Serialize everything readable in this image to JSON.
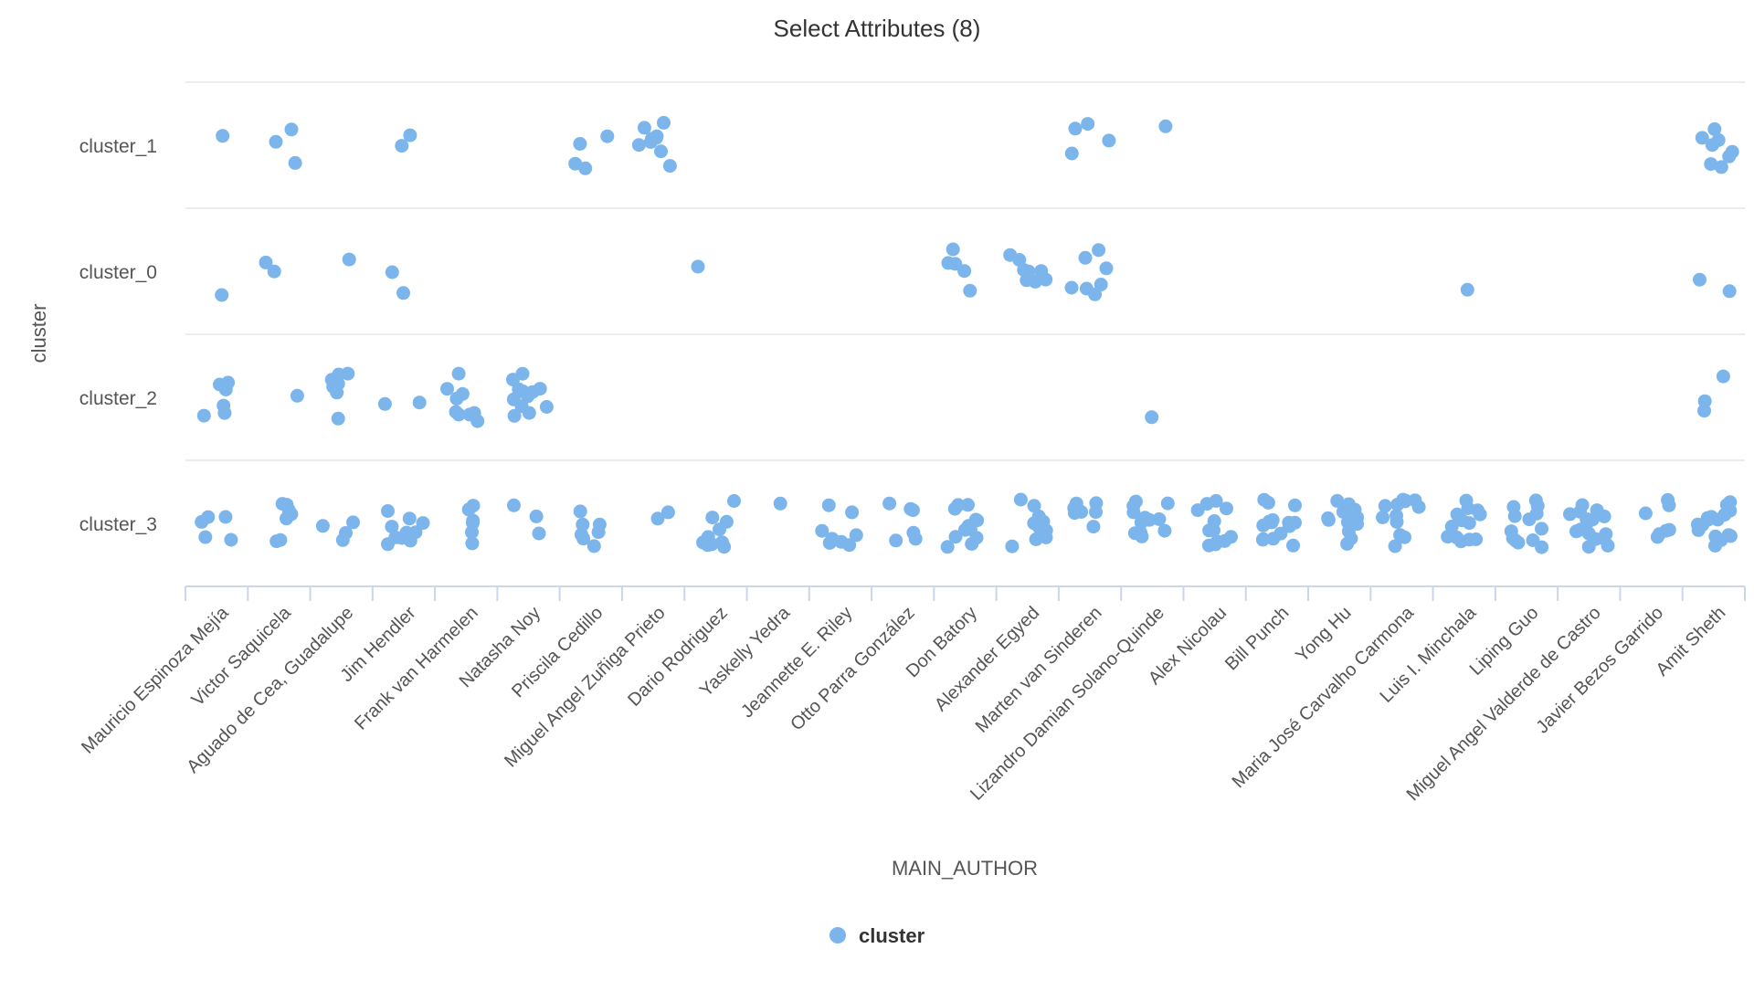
{
  "chart_data": {
    "type": "scatter",
    "title": "Select Attributes (8)",
    "xlabel": "MAIN_AUTHOR",
    "ylabel": "cluster",
    "categories": [
      "Mauricio Espinoza Mejía",
      "Victor Saquicela",
      "Aguado de Cea, Guadalupe",
      "Jim Hendler",
      "Frank van Harmelen",
      "Natasha Noy",
      "Priscila Cedillo",
      "Miguel Angel Zuñiga Prieto",
      "Dario Rodriguez",
      "Yaskelly Yedra",
      "Jeannette E. Riley",
      "Otto Parra González",
      "Don Batory",
      "Alexander Egyed",
      "Marten van Sinderen",
      "Lizandro Damian Solano-Quinde",
      "Alex Nicolau",
      "Bill Punch",
      "Yong Hu",
      "Maria José Carvalho Carmona",
      "Luis I. Minchala",
      "Liping Guo",
      "Miguel Angel Valderde de Castro",
      "Javier Bezos Garrido",
      "Amit Sheth"
    ],
    "y_categories": [
      "cluster_1",
      "cluster_0",
      "cluster_2",
      "cluster_3"
    ],
    "series": [
      {
        "name": "cluster",
        "color": "#7cb5ec",
        "points": [
          {
            "x": "Mauricio Espinoza Mejía",
            "y": "cluster_1",
            "count": 1
          },
          {
            "x": "Mauricio Espinoza Mejía",
            "y": "cluster_0",
            "count": 1
          },
          {
            "x": "Mauricio Espinoza Mejía",
            "y": "cluster_2",
            "count": 6
          },
          {
            "x": "Mauricio Espinoza Mejía",
            "y": "cluster_3",
            "count": 5
          },
          {
            "x": "Victor Saquicela",
            "y": "cluster_1",
            "count": 3
          },
          {
            "x": "Victor Saquicela",
            "y": "cluster_0",
            "count": 2
          },
          {
            "x": "Victor Saquicela",
            "y": "cluster_2",
            "count": 1
          },
          {
            "x": "Victor Saquicela",
            "y": "cluster_3",
            "count": 7
          },
          {
            "x": "Aguado de Cea, Guadalupe",
            "y": "cluster_0",
            "count": 1
          },
          {
            "x": "Aguado de Cea, Guadalupe",
            "y": "cluster_2",
            "count": 7
          },
          {
            "x": "Aguado de Cea, Guadalupe",
            "y": "cluster_3",
            "count": 4
          },
          {
            "x": "Jim Hendler",
            "y": "cluster_1",
            "count": 2
          },
          {
            "x": "Jim Hendler",
            "y": "cluster_0",
            "count": 2
          },
          {
            "x": "Jim Hendler",
            "y": "cluster_2",
            "count": 2
          },
          {
            "x": "Jim Hendler",
            "y": "cluster_3",
            "count": 10
          },
          {
            "x": "Frank van Harmelen",
            "y": "cluster_2",
            "count": 9
          },
          {
            "x": "Frank van Harmelen",
            "y": "cluster_3",
            "count": 6
          },
          {
            "x": "Natasha Noy",
            "y": "cluster_2",
            "count": 12
          },
          {
            "x": "Natasha Noy",
            "y": "cluster_3",
            "count": 3
          },
          {
            "x": "Priscila Cedillo",
            "y": "cluster_1",
            "count": 4
          },
          {
            "x": "Priscila Cedillo",
            "y": "cluster_3",
            "count": 7
          },
          {
            "x": "Miguel Angel Zuñiga Prieto",
            "y": "cluster_1",
            "count": 9
          },
          {
            "x": "Miguel Angel Zuñiga Prieto",
            "y": "cluster_3",
            "count": 2
          },
          {
            "x": "Dario Rodriguez",
            "y": "cluster_0",
            "count": 1
          },
          {
            "x": "Dario Rodriguez",
            "y": "cluster_3",
            "count": 10
          },
          {
            "x": "Yaskelly Yedra",
            "y": "cluster_3",
            "count": 1
          },
          {
            "x": "Jeannette E. Riley",
            "y": "cluster_3",
            "count": 8
          },
          {
            "x": "Otto Parra González",
            "y": "cluster_3",
            "count": 6
          },
          {
            "x": "Don Batory",
            "y": "cluster_0",
            "count": 5
          },
          {
            "x": "Don Batory",
            "y": "cluster_3",
            "count": 12
          },
          {
            "x": "Alexander Egyed",
            "y": "cluster_0",
            "count": 8
          },
          {
            "x": "Alexander Egyed",
            "y": "cluster_3",
            "count": 10
          },
          {
            "x": "Marten van Sinderen",
            "y": "cluster_1",
            "count": 4
          },
          {
            "x": "Marten van Sinderen",
            "y": "cluster_0",
            "count": 7
          },
          {
            "x": "Marten van Sinderen",
            "y": "cluster_3",
            "count": 7
          },
          {
            "x": "Lizandro Damian Solano-Quinde",
            "y": "cluster_1",
            "count": 1
          },
          {
            "x": "Lizandro Damian Solano-Quinde",
            "y": "cluster_2",
            "count": 1
          },
          {
            "x": "Lizandro Damian Solano-Quinde",
            "y": "cluster_3",
            "count": 12
          },
          {
            "x": "Alex Nicolau",
            "y": "cluster_3",
            "count": 12
          },
          {
            "x": "Bill Punch",
            "y": "cluster_3",
            "count": 16
          },
          {
            "x": "Yong Hu",
            "y": "cluster_3",
            "count": 14
          },
          {
            "x": "Maria José Carvalho Carmona",
            "y": "cluster_3",
            "count": 13
          },
          {
            "x": "Luis I. Minchala",
            "y": "cluster_0",
            "count": 1
          },
          {
            "x": "Luis I. Minchala",
            "y": "cluster_3",
            "count": 13
          },
          {
            "x": "Liping Guo",
            "y": "cluster_3",
            "count": 13
          },
          {
            "x": "Miguel Angel Valderde de Castro",
            "y": "cluster_3",
            "count": 16
          },
          {
            "x": "Javier Bezos Garrido",
            "y": "cluster_3",
            "count": 7
          },
          {
            "x": "Amit Sheth",
            "y": "cluster_1",
            "count": 8
          },
          {
            "x": "Amit Sheth",
            "y": "cluster_0",
            "count": 2
          },
          {
            "x": "Amit Sheth",
            "y": "cluster_2",
            "count": 3
          },
          {
            "x": "Amit Sheth",
            "y": "cluster_3",
            "count": 16
          }
        ]
      }
    ],
    "grid": true,
    "legend": {
      "position": "bottom-center",
      "label": "cluster"
    }
  }
}
